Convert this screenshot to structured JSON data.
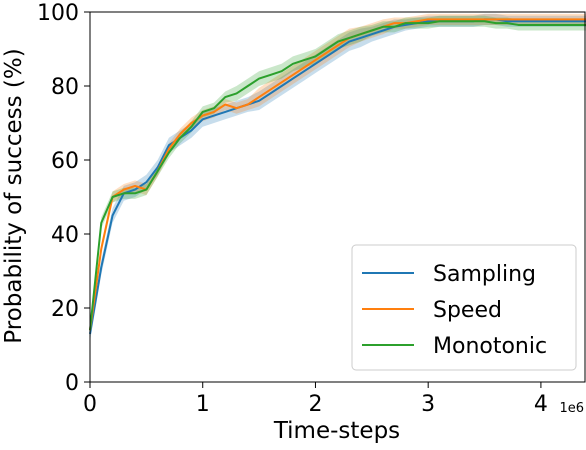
{
  "chart_data": {
    "type": "line",
    "title": "",
    "xlabel": "Time-steps",
    "ylabel": "Probability of success (%)",
    "x_multiplier_label": "1e6",
    "xlim": [
      0,
      4.4
    ],
    "ylim": [
      0,
      100
    ],
    "xticks": [
      0,
      1,
      2,
      3,
      4
    ],
    "yticks": [
      0,
      20,
      40,
      60,
      80,
      100
    ],
    "grid": false,
    "legend_placement": "lower right",
    "x": [
      0.0,
      0.1,
      0.2,
      0.3,
      0.4,
      0.5,
      0.6,
      0.7,
      0.8,
      0.9,
      1.0,
      1.1,
      1.2,
      1.3,
      1.4,
      1.5,
      1.6,
      1.7,
      1.8,
      1.9,
      2.0,
      2.1,
      2.2,
      2.3,
      2.4,
      2.5,
      2.6,
      2.7,
      2.8,
      2.9,
      3.0,
      3.1,
      3.2,
      3.3,
      3.4,
      3.5,
      3.6,
      3.7,
      3.8,
      3.9,
      4.0,
      4.1,
      4.2,
      4.3,
      4.4
    ],
    "series": [
      {
        "name": "Sampling",
        "color": "#1f77b4",
        "values": [
          13,
          31,
          45,
          51,
          52,
          54,
          58,
          64,
          66,
          68,
          71,
          72,
          73,
          74,
          75,
          76,
          78,
          80,
          82,
          84,
          86,
          88,
          90,
          92,
          93,
          94,
          95,
          96,
          96.5,
          97,
          97.5,
          97.5,
          97.5,
          97.5,
          97.5,
          98,
          98,
          97.5,
          97.5,
          97.5,
          97.5,
          97.5,
          97.5,
          97.5,
          97.5
        ],
        "band": [
          2,
          2,
          2,
          2,
          2,
          2,
          2,
          2,
          2,
          2,
          2,
          2,
          2,
          2,
          2,
          2.5,
          2.5,
          2.5,
          2.5,
          2.5,
          2.5,
          2.5,
          2.5,
          2.5,
          2.5,
          2,
          2,
          2,
          1.5,
          1.5,
          1.5,
          1.5,
          1.5,
          1.5,
          1.5,
          1.5,
          1.5,
          1.5,
          1.5,
          1.5,
          1.5,
          1.5,
          1.5,
          1.5,
          1.5
        ]
      },
      {
        "name": "Speed",
        "color": "#ff7f0e",
        "values": [
          14,
          36,
          50,
          52,
          53,
          52,
          57,
          63,
          67,
          70,
          72,
          73,
          75,
          74,
          75,
          77,
          79,
          81,
          83,
          85,
          87,
          89,
          91,
          93,
          94,
          95,
          96,
          97,
          97,
          97.5,
          98,
          98,
          98,
          98,
          98,
          98,
          98,
          98,
          98,
          98,
          98,
          98,
          98,
          98,
          98
        ],
        "band": [
          1.5,
          1.5,
          1.5,
          1.5,
          1.5,
          1.5,
          1.5,
          1.5,
          1.5,
          1.5,
          1.5,
          1.5,
          1.5,
          1.5,
          1.5,
          2.5,
          2.5,
          2.5,
          2.5,
          2.5,
          2.5,
          2.5,
          2.5,
          2.5,
          2,
          2,
          2,
          1.5,
          1.5,
          1.5,
          1.5,
          1.5,
          1.5,
          1.5,
          1.5,
          1.5,
          1.5,
          1.5,
          1.5,
          1.5,
          1.5,
          1.5,
          1.5,
          1.5,
          1.5
        ]
      },
      {
        "name": "Monotonic",
        "color": "#2ca02c",
        "values": [
          14,
          43,
          50,
          51,
          51,
          52,
          57,
          62,
          66,
          69,
          73,
          74,
          77,
          78,
          80,
          82,
          83,
          84,
          86,
          87,
          88,
          90,
          92,
          93,
          94,
          95,
          96,
          96,
          97,
          97,
          97,
          97.5,
          97.5,
          97.5,
          97.5,
          97.5,
          97,
          97,
          96.5,
          96.5,
          96.5,
          96.5,
          96.5,
          96.5,
          96.5
        ],
        "band": [
          1.5,
          1.5,
          1.5,
          1.5,
          1.5,
          1.5,
          1.5,
          1.5,
          1.5,
          1.5,
          1.5,
          1.5,
          1.5,
          2,
          2,
          2,
          2,
          2,
          2,
          2,
          2,
          2,
          2,
          2,
          2,
          1.5,
          1.5,
          1.5,
          1.5,
          1.5,
          1.5,
          1.5,
          1.5,
          1.5,
          1.5,
          1.5,
          1.5,
          1.5,
          1.5,
          1.5,
          1.5,
          1.5,
          1.5,
          1.5,
          1.5
        ]
      }
    ]
  }
}
